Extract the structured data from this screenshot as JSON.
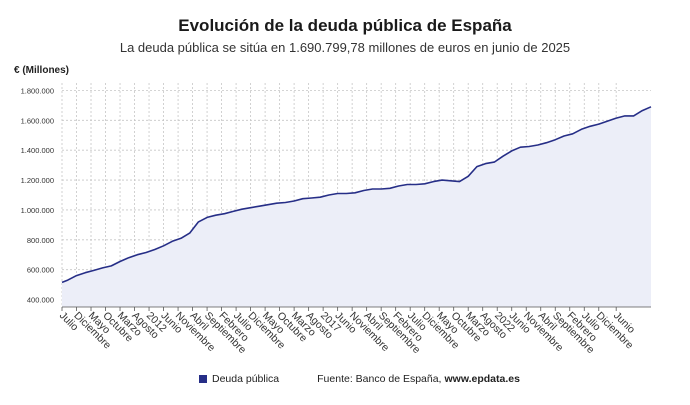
{
  "header": {
    "title": "Evolución de la deuda pública de España",
    "subtitle": "La deuda pública se sitúa en 1.690.799,78 millones de euros en junio de 2025",
    "unit": "€ (Millones)"
  },
  "footer": {
    "legend_label": "Deuda pública",
    "source_prefix": "Fuente: Banco de España,",
    "source_site": "www.epdata.es"
  },
  "colors": {
    "series": "#262e87",
    "area": "#eceef8",
    "grid": "#c6c6c6",
    "axis": "#555555"
  },
  "chart_data": {
    "type": "area",
    "ylim": [
      350000,
      1850000
    ],
    "y_ticks": [
      400000,
      600000,
      800000,
      1000000,
      1200000,
      1400000,
      1600000,
      1800000
    ],
    "y_tick_labels": [
      "400.000",
      "600.000",
      "800.000",
      "1.000.000",
      "1.200.000",
      "1.400.000",
      "1.600.000",
      "1.800.000"
    ],
    "x_tick_labels": [
      "Julio",
      "Diciembre",
      "Mayo",
      "Octubre",
      "Marzo",
      "Agosto",
      "2012",
      "Junio",
      "Noviembre",
      "Abril",
      "Septiembre",
      "Febrero",
      "Julio",
      "Diciembre",
      "Mayo",
      "Octubre",
      "Marzo",
      "Agosto",
      "2017",
      "Junio",
      "Noviembre",
      "Abril",
      "Septiembre",
      "Febrero",
      "Julio",
      "Diciembre",
      "Mayo",
      "Octubre",
      "Marzo",
      "Agosto",
      "2022",
      "Junio",
      "Noviembre",
      "Abril",
      "Septiembre",
      "Febrero",
      "Julio",
      "Diciembre",
      "Junio"
    ],
    "x_tick_months": [
      "2008-07",
      "2008-12",
      "2009-05",
      "2009-10",
      "2010-03",
      "2010-08",
      "2011-01",
      "2011-06",
      "2011-11",
      "2012-04",
      "2012-09",
      "2013-02",
      "2013-07",
      "2013-12",
      "2014-05",
      "2014-10",
      "2015-03",
      "2015-08",
      "2016-01",
      "2016-06",
      "2016-11",
      "2017-04",
      "2017-09",
      "2018-02",
      "2018-07",
      "2018-12",
      "2019-05",
      "2019-10",
      "2020-03",
      "2020-08",
      "2021-01",
      "2021-06",
      "2021-11",
      "2022-04",
      "2022-09",
      "2023-02",
      "2023-07",
      "2023-12",
      "2024-06"
    ],
    "series": [
      {
        "name": "Deuda pública",
        "points": [
          [
            "2008-07",
            515000
          ],
          [
            "2008-09",
            530000
          ],
          [
            "2008-12",
            560000
          ],
          [
            "2009-03",
            580000
          ],
          [
            "2009-06",
            595000
          ],
          [
            "2009-09",
            612000
          ],
          [
            "2009-12",
            625000
          ],
          [
            "2010-03",
            655000
          ],
          [
            "2010-06",
            680000
          ],
          [
            "2010-09",
            700000
          ],
          [
            "2010-12",
            715000
          ],
          [
            "2011-03",
            735000
          ],
          [
            "2011-06",
            760000
          ],
          [
            "2011-09",
            790000
          ],
          [
            "2011-12",
            810000
          ],
          [
            "2012-03",
            845000
          ],
          [
            "2012-06",
            920000
          ],
          [
            "2012-09",
            950000
          ],
          [
            "2012-12",
            965000
          ],
          [
            "2013-03",
            975000
          ],
          [
            "2013-06",
            990000
          ],
          [
            "2013-09",
            1005000
          ],
          [
            "2013-12",
            1015000
          ],
          [
            "2014-03",
            1025000
          ],
          [
            "2014-06",
            1035000
          ],
          [
            "2014-09",
            1045000
          ],
          [
            "2014-12",
            1050000
          ],
          [
            "2015-03",
            1060000
          ],
          [
            "2015-06",
            1075000
          ],
          [
            "2015-09",
            1080000
          ],
          [
            "2015-12",
            1085000
          ],
          [
            "2016-03",
            1100000
          ],
          [
            "2016-06",
            1110000
          ],
          [
            "2016-09",
            1110000
          ],
          [
            "2016-12",
            1115000
          ],
          [
            "2017-03",
            1130000
          ],
          [
            "2017-06",
            1140000
          ],
          [
            "2017-09",
            1140000
          ],
          [
            "2017-12",
            1145000
          ],
          [
            "2018-03",
            1160000
          ],
          [
            "2018-06",
            1170000
          ],
          [
            "2018-09",
            1170000
          ],
          [
            "2018-12",
            1175000
          ],
          [
            "2019-03",
            1190000
          ],
          [
            "2019-06",
            1200000
          ],
          [
            "2019-09",
            1195000
          ],
          [
            "2019-12",
            1190000
          ],
          [
            "2020-03",
            1225000
          ],
          [
            "2020-06",
            1290000
          ],
          [
            "2020-09",
            1310000
          ],
          [
            "2020-12",
            1320000
          ],
          [
            "2021-03",
            1360000
          ],
          [
            "2021-06",
            1395000
          ],
          [
            "2021-09",
            1420000
          ],
          [
            "2021-12",
            1425000
          ],
          [
            "2022-03",
            1435000
          ],
          [
            "2022-06",
            1450000
          ],
          [
            "2022-09",
            1470000
          ],
          [
            "2022-12",
            1495000
          ],
          [
            "2023-03",
            1510000
          ],
          [
            "2023-06",
            1540000
          ],
          [
            "2023-09",
            1560000
          ],
          [
            "2023-12",
            1575000
          ],
          [
            "2024-03",
            1595000
          ],
          [
            "2024-06",
            1615000
          ],
          [
            "2024-09",
            1630000
          ],
          [
            "2024-12",
            1630000
          ],
          [
            "2025-03",
            1665000
          ],
          [
            "2025-06",
            1690800
          ]
        ]
      }
    ]
  }
}
